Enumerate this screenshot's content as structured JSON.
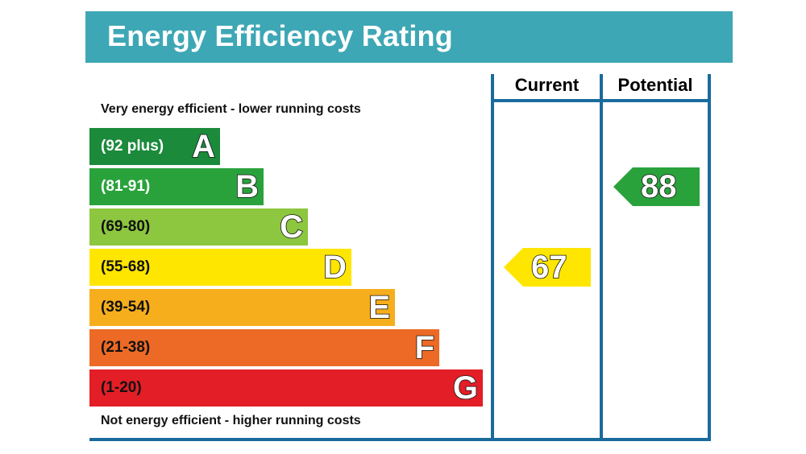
{
  "chart_data": {
    "type": "bar",
    "title": "Energy Efficiency Rating",
    "top_note": "Very energy efficient - lower running costs",
    "bottom_note": "Not energy efficient - higher running costs",
    "columns": [
      "Current",
      "Potential"
    ],
    "bands": [
      {
        "letter": "A",
        "range": "(92 plus)",
        "color": "#1b8a3b",
        "text_color": "#ffffff"
      },
      {
        "letter": "B",
        "range": "(81-91)",
        "color": "#2aa23c",
        "text_color": "#ffffff"
      },
      {
        "letter": "C",
        "range": "(69-80)",
        "color": "#8dc63f",
        "text_color": "#111111"
      },
      {
        "letter": "D",
        "range": "(55-68)",
        "color": "#ffe600",
        "text_color": "#111111"
      },
      {
        "letter": "E",
        "range": "(39-54)",
        "color": "#f7ae1d",
        "text_color": "#111111"
      },
      {
        "letter": "F",
        "range": "(21-38)",
        "color": "#ec6a25",
        "text_color": "#111111"
      },
      {
        "letter": "G",
        "range": "(1-20)",
        "color": "#e31e26",
        "text_color": "#111111"
      }
    ],
    "current": {
      "value": 67,
      "band": "D",
      "color": "#ffe600"
    },
    "potential": {
      "value": 88,
      "band": "B",
      "color": "#2aa23c"
    }
  }
}
